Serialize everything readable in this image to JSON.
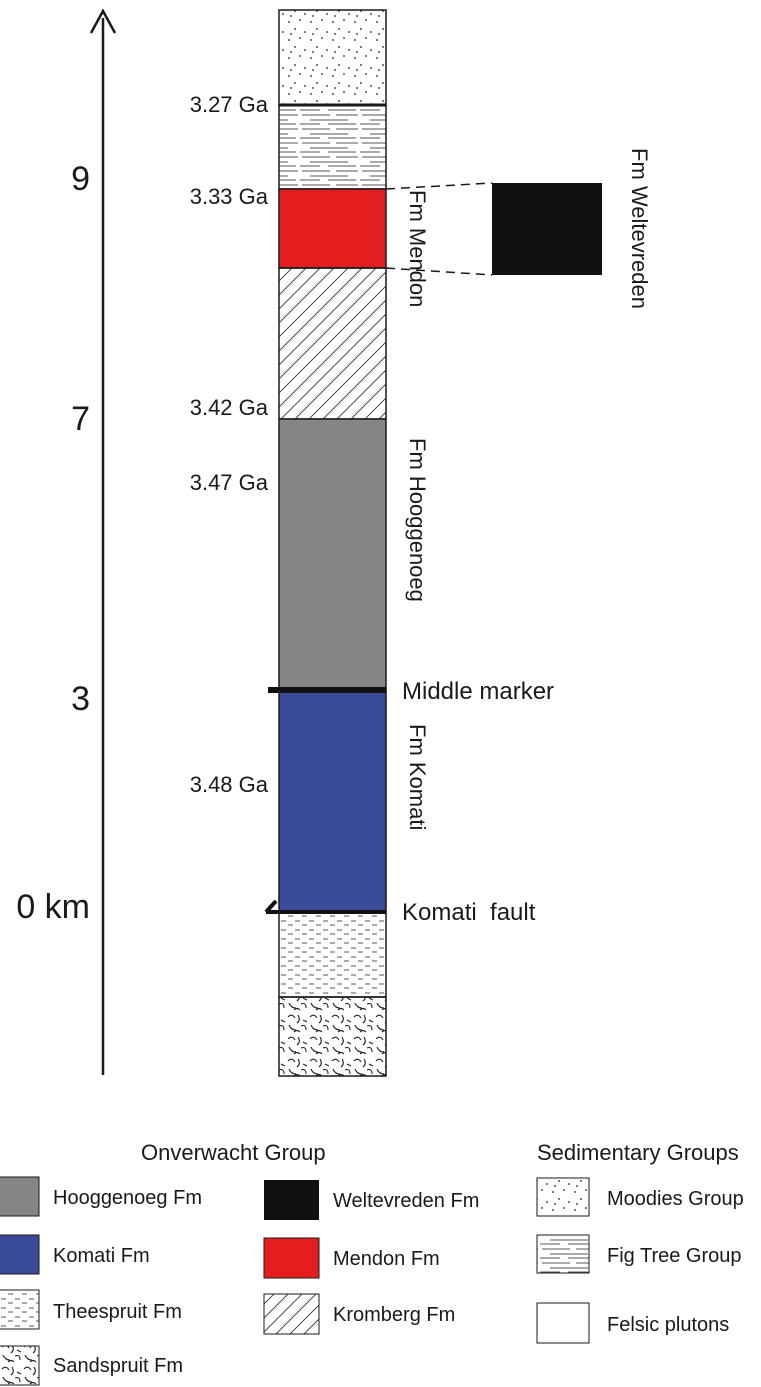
{
  "axis": {
    "ticks": [
      {
        "label": "9",
        "km": 9
      },
      {
        "label": "7",
        "km": 7
      },
      {
        "label": "3",
        "km": 3
      },
      {
        "label": "0 km",
        "km": 0
      }
    ]
  },
  "ages": [
    {
      "label": "3.27 Ga"
    },
    {
      "label": "3.33 Ga"
    },
    {
      "label": "3.42 Ga"
    },
    {
      "label": "3.47 Ga"
    },
    {
      "label": "3.48 Ga"
    }
  ],
  "column_units": [
    {
      "unit": "Moodies Group",
      "pattern": "dots"
    },
    {
      "unit": "Fig Tree Group",
      "pattern": "lines"
    },
    {
      "unit": "Mendon Fm",
      "color": "#e41e1e"
    },
    {
      "unit": "Kromberg Fm",
      "pattern": "diagonal-hatch"
    },
    {
      "unit": "Hooggenoeg Fm",
      "color": "#858588"
    },
    {
      "unit": "Komati Fm",
      "color": "#3a4a9a"
    },
    {
      "unit": "Theespruit Fm",
      "pattern": "dashes"
    },
    {
      "unit": "Sandspruit Fm",
      "pattern": "swirls"
    }
  ],
  "formation_labels": {
    "mendon": "Fm Mendon",
    "weltevreden": "Fm Weltevreden",
    "hooggenoeg": "Fm Hooggenoeg",
    "komati": "Fm Komati"
  },
  "markers": {
    "middle": "Middle marker",
    "fault": "Komati  fault"
  },
  "legend": {
    "onverwacht_title": "Onverwacht Group",
    "sedimentary_title": "Sedimentary Groups",
    "items": {
      "hooggenoeg": "Hooggenoeg Fm",
      "komati": "Komati Fm",
      "theespruit": "Theespruit Fm",
      "sandspruit": "Sandspruit Fm",
      "weltevreden": "Weltevreden Fm",
      "mendon": "Mendon Fm",
      "kromberg": "Kromberg Fm",
      "moodies": "Moodies Group",
      "figtree": "Fig Tree Group",
      "felsic": "Felsic plutons"
    }
  },
  "colors": {
    "mendon": "#e41e1e",
    "hooggenoeg": "#858588",
    "komati": "#3a4a9a",
    "weltevreden": "#111111"
  }
}
